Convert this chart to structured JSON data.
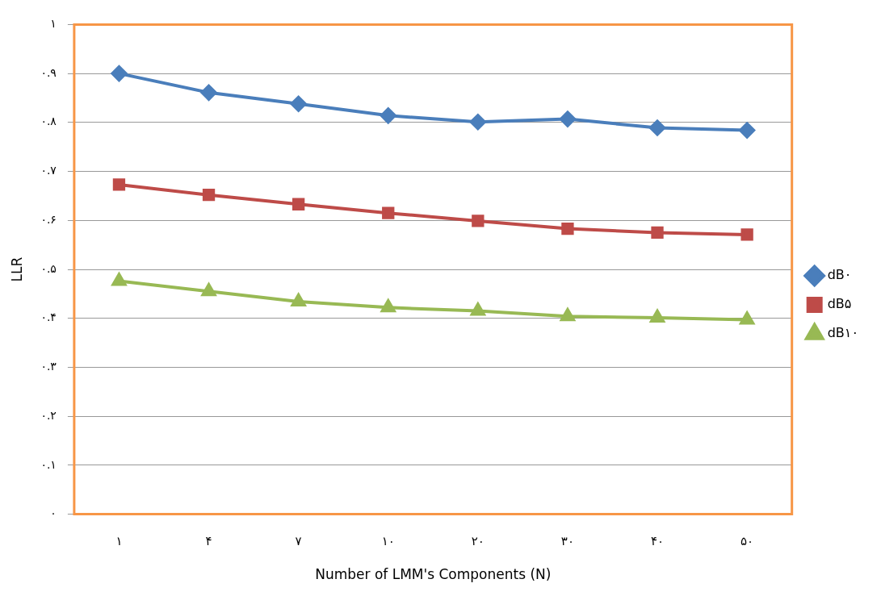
{
  "chart_data": {
    "type": "line",
    "xlabel": "Number of LMM's Components (N)",
    "ylabel": "LLR",
    "categories": [
      "۱",
      "۴",
      "۷",
      "۱۰",
      "۲۰",
      "۳۰",
      "۴۰",
      "۵۰"
    ],
    "series": [
      {
        "name": "dB۰",
        "color": "#4a7ebb",
        "marker": "diamond",
        "values": [
          0.9,
          0.861,
          0.838,
          0.814,
          0.801,
          0.807,
          0.789,
          0.784
        ]
      },
      {
        "name": "dB۵",
        "color": "#be4b48",
        "marker": "square",
        "values": [
          0.673,
          0.652,
          0.633,
          0.615,
          0.599,
          0.583,
          0.575,
          0.571
        ]
      },
      {
        "name": "dB۱۰",
        "color": "#98b954",
        "marker": "triangle",
        "values": [
          0.476,
          0.455,
          0.434,
          0.422,
          0.415,
          0.404,
          0.401,
          0.397
        ]
      }
    ],
    "ylim": [
      0,
      1
    ],
    "yticks": [
      {
        "value": 0,
        "label": "۰"
      },
      {
        "value": 0.1,
        "label": "۰.۱"
      },
      {
        "value": 0.2,
        "label": "۰.۲"
      },
      {
        "value": 0.3,
        "label": "۰.۳"
      },
      {
        "value": 0.4,
        "label": "۰.۴"
      },
      {
        "value": 0.5,
        "label": "۰.۵"
      },
      {
        "value": 0.6,
        "label": "۰.۶"
      },
      {
        "value": 0.7,
        "label": "۰.۷"
      },
      {
        "value": 0.8,
        "label": "۰.۸"
      },
      {
        "value": 0.9,
        "label": "۰.۹"
      },
      {
        "value": 1,
        "label": "۱"
      }
    ],
    "grid": "y",
    "legend": "right",
    "line_style": "solid"
  }
}
